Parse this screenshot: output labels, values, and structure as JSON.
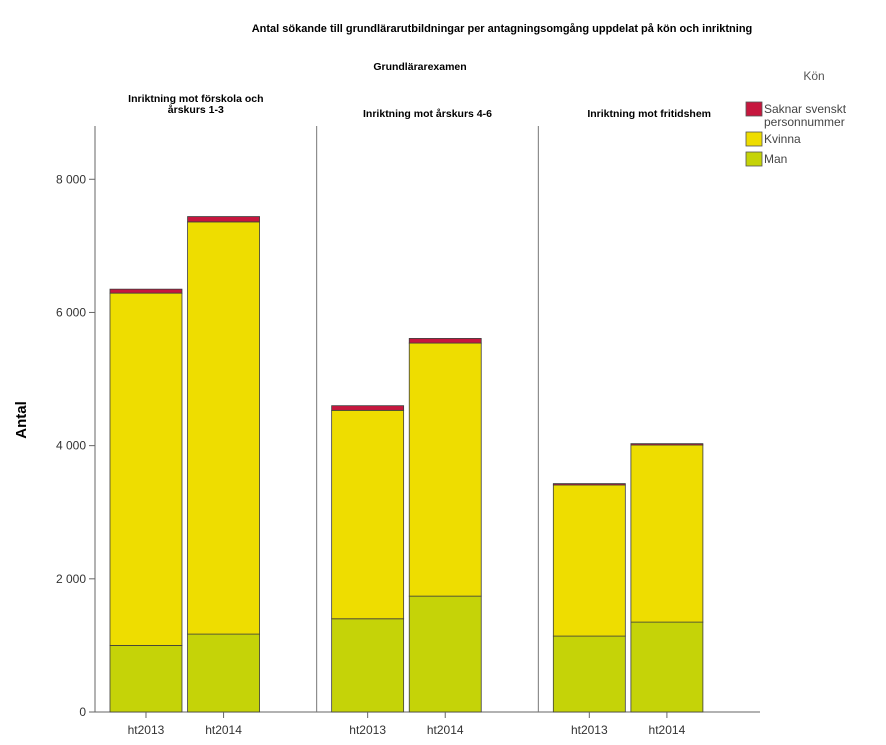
{
  "chart_data": {
    "type": "bar",
    "stacked": true,
    "title": "Antal sökande till grundlärarutbildningar per antagningsomgång uppdelat på kön och inriktning",
    "subtitle": "Grundlärarexamen",
    "ylabel": "Antal",
    "ylim": [
      0,
      8800
    ],
    "yticks": [
      0,
      2000,
      4000,
      6000,
      8000
    ],
    "ytick_labels": [
      "0",
      "2 000",
      "4 000",
      "6 000",
      "8 000"
    ],
    "categories": [
      "ht2013",
      "ht2014"
    ],
    "panels": [
      {
        "label_lines": [
          "Inriktning mot förskola och",
          "årskurs 1-3"
        ],
        "series_values": {
          "Man": [
            1000,
            1170
          ],
          "Kvinna": [
            5290,
            6190
          ],
          "Saknar svenskt personnummer": [
            60,
            80
          ]
        }
      },
      {
        "label_lines": [
          "Inriktning mot årskurs 4-6"
        ],
        "series_values": {
          "Man": [
            1400,
            1740
          ],
          "Kvinna": [
            3130,
            3800
          ],
          "Saknar svenskt personnummer": [
            70,
            70
          ]
        }
      },
      {
        "label_lines": [
          "Inriktning mot fritidshem"
        ],
        "series_values": {
          "Man": [
            1140,
            1350
          ],
          "Kvinna": [
            2270,
            2660
          ],
          "Saknar svenskt personnummer": [
            20,
            20
          ]
        }
      }
    ],
    "series": [
      {
        "name": "Man",
        "color": "#c5d308"
      },
      {
        "name": "Kvinna",
        "color": "#eedd00"
      },
      {
        "name": "Saknar svenskt personnummer",
        "color": "#c6173e"
      }
    ],
    "legend": {
      "title": "Kön",
      "placement": "top-right",
      "entries": [
        {
          "lines": [
            "Saknar svenskt",
            "personnummer"
          ],
          "color": "#c6173e"
        },
        {
          "lines": [
            "Kvinna"
          ],
          "color": "#eedd00"
        },
        {
          "lines": [
            "Man"
          ],
          "color": "#c5d308"
        }
      ]
    },
    "grid": false
  }
}
